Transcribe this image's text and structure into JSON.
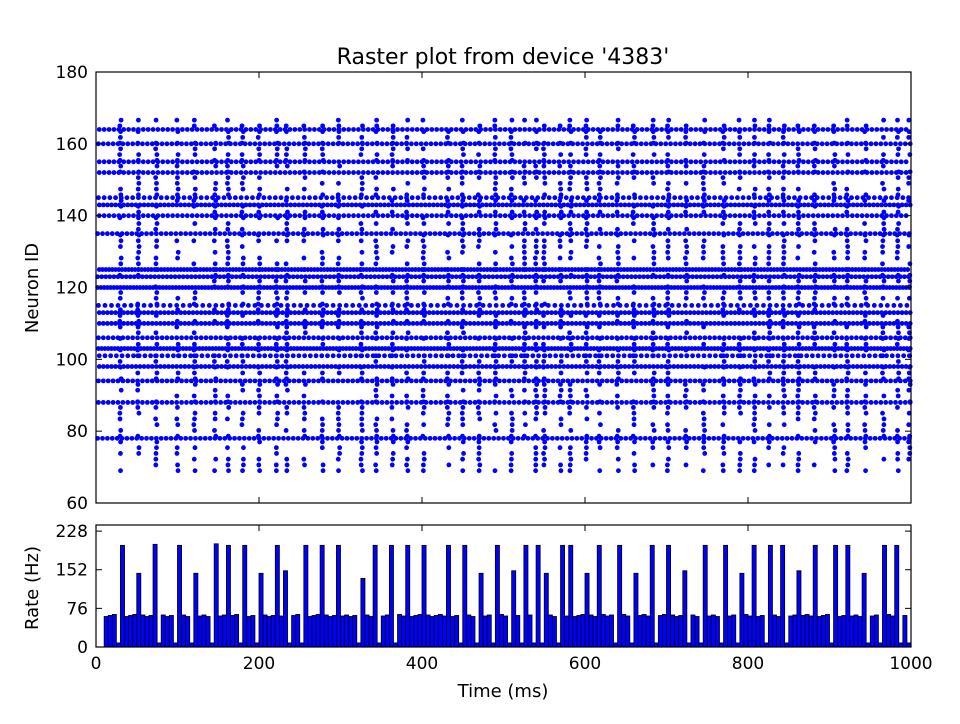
{
  "chart_data": [
    {
      "type": "scatter",
      "title": "Raster plot from device '4383'",
      "xlabel": "",
      "ylabel": "Neuron ID",
      "xlim": [
        0,
        1000
      ],
      "ylim": [
        60,
        180
      ],
      "x_ticks": [
        0,
        200,
        400,
        600,
        800,
        1000
      ],
      "y_ticks": [
        60,
        80,
        100,
        120,
        140,
        160,
        180
      ],
      "marker_color": "#0000ff",
      "grid": false,
      "sync_times_ms": [
        30,
        52,
        74,
        100,
        121,
        146,
        162,
        180,
        200,
        222,
        234,
        256,
        278,
        298,
        326,
        344,
        364,
        382,
        402,
        432,
        450,
        470,
        490,
        510,
        526,
        540,
        550,
        570,
        582,
        602,
        618,
        640,
        660,
        684,
        702,
        724,
        746,
        770,
        790,
        808,
        826,
        844,
        862,
        882,
        906,
        922,
        944,
        966,
        984,
        1000
      ],
      "sync_range": [
        69,
        167
      ],
      "tonic_neurons": [
        {
          "id": 103,
          "period_ms": 4
        },
        {
          "id": 120,
          "period_ms": 4
        },
        {
          "id": 125,
          "period_ms": 4
        },
        {
          "id": 143,
          "period_ms": 5
        },
        {
          "id": 113,
          "period_ms": 5
        },
        {
          "id": 110,
          "period_ms": 5
        },
        {
          "id": 98,
          "period_ms": 5
        },
        {
          "id": 106,
          "period_ms": 6
        },
        {
          "id": 123,
          "period_ms": 5
        },
        {
          "id": 160,
          "period_ms": 6
        },
        {
          "id": 155,
          "period_ms": 6
        },
        {
          "id": 164,
          "period_ms": 6
        },
        {
          "id": 140,
          "period_ms": 6
        },
        {
          "id": 135,
          "period_ms": 6
        },
        {
          "id": 152,
          "period_ms": 6
        },
        {
          "id": 145,
          "period_ms": 7
        },
        {
          "id": 94,
          "period_ms": 6
        },
        {
          "id": 88,
          "period_ms": 6
        },
        {
          "id": 78,
          "period_ms": 6
        },
        {
          "id": 101,
          "period_ms": 7
        },
        {
          "id": 115,
          "period_ms": 8
        }
      ]
    },
    {
      "type": "bar",
      "title": "",
      "xlabel": "Time (ms)",
      "ylabel": "Rate (Hz)",
      "xlim": [
        0,
        1000
      ],
      "ylim": [
        0,
        240
      ],
      "x_ticks": [
        0,
        200,
        400,
        600,
        800,
        1000
      ],
      "y_ticks": [
        0,
        76,
        152,
        228
      ],
      "bin_width_ms": 5,
      "bar_color": "#0000ff",
      "edge_color": "#000000",
      "baseline_rate_hz": 62,
      "burst_rates_hz": [
        200,
        145,
        202,
        200,
        145,
        203,
        200,
        200,
        145,
        200,
        150,
        200,
        200,
        200,
        135,
        200,
        200,
        200,
        200,
        200,
        200,
        145,
        200,
        150,
        200,
        200,
        145,
        200,
        200,
        145,
        200,
        200,
        145,
        200,
        200,
        150,
        200,
        200,
        145,
        200,
        200,
        200,
        150,
        200,
        200,
        200,
        145,
        200,
        200,
        200
      ]
    }
  ]
}
